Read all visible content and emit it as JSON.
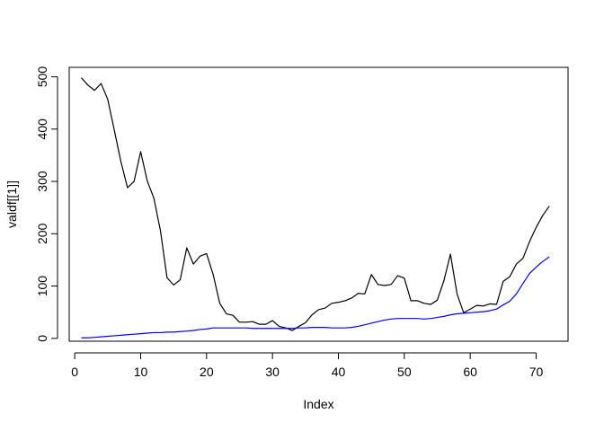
{
  "chart_data": {
    "type": "line",
    "title": "",
    "xlabel": "Index",
    "ylabel": "valdf[[1]]",
    "xlim": [
      -0.84,
      74.84
    ],
    "ylim": [
      -5.4,
      518
    ],
    "x_ticks": [
      0,
      10,
      20,
      30,
      40,
      50,
      60,
      70
    ],
    "y_ticks": [
      0,
      100,
      200,
      300,
      400,
      500
    ],
    "x_tick_labels": [
      "0",
      "10",
      "20",
      "30",
      "40",
      "50",
      "60",
      "70"
    ],
    "y_tick_labels": [
      "0",
      "100",
      "200",
      "300",
      "400",
      "500"
    ],
    "grid": false,
    "legend": "none",
    "x": [
      1,
      2,
      3,
      4,
      5,
      6,
      7,
      8,
      9,
      10,
      11,
      12,
      13,
      14,
      15,
      16,
      17,
      18,
      19,
      20,
      21,
      22,
      23,
      24,
      25,
      26,
      27,
      28,
      29,
      30,
      31,
      32,
      33,
      34,
      35,
      36,
      37,
      38,
      39,
      40,
      41,
      42,
      43,
      44,
      45,
      46,
      47,
      48,
      49,
      50,
      51,
      52,
      53,
      54,
      55,
      56,
      57,
      58,
      59,
      60,
      61,
      62,
      63,
      64,
      65,
      66,
      67,
      68,
      69,
      70,
      71,
      72
    ],
    "series": [
      {
        "color": "#000000",
        "values": [
          498,
          484,
          474,
          487,
          457,
          398,
          338,
          288,
          300,
          357,
          301,
          268,
          206,
          116,
          102,
          112,
          173,
          142,
          157,
          162,
          122,
          67,
          47,
          44,
          31,
          31,
          32,
          27,
          27,
          34,
          23,
          20,
          15,
          23,
          30,
          45,
          55,
          58,
          67,
          69,
          72,
          77,
          86,
          85,
          122,
          103,
          101,
          103,
          120,
          115,
          72,
          72,
          67,
          65,
          73,
          110,
          161,
          85,
          49,
          56,
          63,
          62,
          66,
          65,
          109,
          118,
          142,
          153,
          185,
          212,
          235,
          253
        ]
      },
      {
        "color": "#0000ff",
        "values": [
          1,
          1,
          2,
          3,
          4,
          5,
          6,
          7,
          8,
          9,
          10,
          11,
          11,
          12,
          12,
          13,
          14,
          15,
          17,
          18,
          20,
          20,
          20,
          20,
          20,
          20,
          19,
          19,
          19,
          19,
          19,
          19,
          19,
          20,
          20,
          21,
          21,
          21,
          20,
          20,
          20,
          21,
          23,
          26,
          29,
          32,
          35,
          37,
          38,
          38,
          38,
          38,
          37,
          38,
          40,
          42,
          45,
          47,
          48,
          49,
          50,
          51,
          53,
          56,
          64,
          71,
          85,
          105,
          124,
          136,
          147,
          156
        ]
      }
    ]
  }
}
